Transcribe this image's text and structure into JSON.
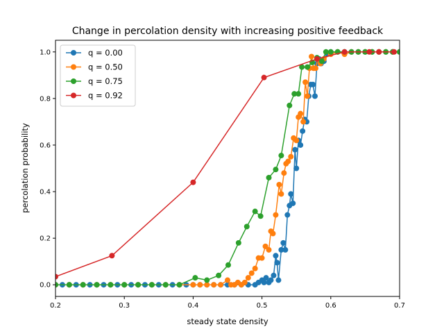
{
  "chart_data": {
    "type": "line",
    "title": "Change in percolation density with increasing positive feedback",
    "xlabel": "steady state density",
    "ylabel": "percolation probability",
    "xlim": [
      0.2,
      0.7
    ],
    "ylim": [
      -0.05,
      1.05
    ],
    "xticks": [
      0.2,
      0.3,
      0.4,
      0.5,
      0.6,
      0.7
    ],
    "yticks": [
      0.0,
      0.2,
      0.4,
      0.6,
      0.8,
      1.0
    ],
    "xtick_labels": [
      "0.2",
      "0.3",
      "0.4",
      "0.5",
      "0.6",
      "0.7"
    ],
    "ytick_labels": [
      "0.0",
      "0.2",
      "0.4",
      "0.6",
      "0.8",
      "1.0"
    ],
    "legend_position": "top-left",
    "grid": false,
    "series": [
      {
        "name": "q = 0.00",
        "color": "#1f77b4",
        "points": [
          [
            0.2,
            0.0
          ],
          [
            0.21,
            0.0
          ],
          [
            0.22,
            0.0
          ],
          [
            0.23,
            0.0
          ],
          [
            0.24,
            0.0
          ],
          [
            0.25,
            0.0
          ],
          [
            0.26,
            0.0
          ],
          [
            0.27,
            0.0
          ],
          [
            0.28,
            0.0
          ],
          [
            0.29,
            0.0
          ],
          [
            0.3,
            0.0
          ],
          [
            0.31,
            0.0
          ],
          [
            0.32,
            0.0
          ],
          [
            0.33,
            0.0
          ],
          [
            0.34,
            0.0
          ],
          [
            0.35,
            0.0
          ],
          [
            0.36,
            0.0
          ],
          [
            0.37,
            0.0
          ],
          [
            0.38,
            0.0
          ],
          [
            0.39,
            0.0
          ],
          [
            0.4,
            0.0
          ],
          [
            0.41,
            0.0
          ],
          [
            0.42,
            0.0
          ],
          [
            0.43,
            0.0
          ],
          [
            0.44,
            0.0
          ],
          [
            0.45,
            0.0
          ],
          [
            0.46,
            0.0
          ],
          [
            0.47,
            0.0
          ],
          [
            0.48,
            0.0
          ],
          [
            0.49,
            0.0
          ],
          [
            0.495,
            0.01
          ],
          [
            0.5,
            0.02
          ],
          [
            0.503,
            0.01
          ],
          [
            0.506,
            0.03
          ],
          [
            0.51,
            0.01
          ],
          [
            0.513,
            0.02
          ],
          [
            0.517,
            0.04
          ],
          [
            0.52,
            0.125
          ],
          [
            0.522,
            0.095
          ],
          [
            0.524,
            0.02
          ],
          [
            0.528,
            0.15
          ],
          [
            0.531,
            0.18
          ],
          [
            0.534,
            0.15
          ],
          [
            0.537,
            0.3
          ],
          [
            0.54,
            0.34
          ],
          [
            0.542,
            0.39
          ],
          [
            0.545,
            0.35
          ],
          [
            0.548,
            0.58
          ],
          [
            0.55,
            0.5
          ],
          [
            0.553,
            0.62
          ],
          [
            0.556,
            0.6
          ],
          [
            0.559,
            0.66
          ],
          [
            0.562,
            0.71
          ],
          [
            0.565,
            0.7
          ],
          [
            0.568,
            0.81
          ],
          [
            0.571,
            0.86
          ],
          [
            0.574,
            0.86
          ],
          [
            0.577,
            0.81
          ],
          [
            0.58,
            0.95
          ],
          [
            0.583,
            0.97
          ],
          [
            0.586,
            0.95
          ],
          [
            0.59,
            0.96
          ],
          [
            0.595,
            0.99
          ],
          [
            0.6,
            1.0
          ],
          [
            0.61,
            1.0
          ],
          [
            0.62,
            1.0
          ],
          [
            0.63,
            1.0
          ],
          [
            0.64,
            1.0
          ],
          [
            0.65,
            1.0
          ],
          [
            0.66,
            1.0
          ],
          [
            0.67,
            1.0
          ],
          [
            0.68,
            1.0
          ],
          [
            0.69,
            1.0
          ],
          [
            0.7,
            1.0
          ]
        ]
      },
      {
        "name": "q = 0.50",
        "color": "#ff7f0e",
        "points": [
          [
            0.2,
            0.0
          ],
          [
            0.22,
            0.0
          ],
          [
            0.24,
            0.0
          ],
          [
            0.26,
            0.0
          ],
          [
            0.28,
            0.0
          ],
          [
            0.3,
            0.0
          ],
          [
            0.32,
            0.0
          ],
          [
            0.34,
            0.0
          ],
          [
            0.36,
            0.0
          ],
          [
            0.38,
            0.0
          ],
          [
            0.4,
            0.0
          ],
          [
            0.41,
            0.0
          ],
          [
            0.42,
            0.0
          ],
          [
            0.43,
            0.0
          ],
          [
            0.44,
            0.0
          ],
          [
            0.45,
            0.02
          ],
          [
            0.455,
            0.0
          ],
          [
            0.46,
            0.0
          ],
          [
            0.465,
            0.01
          ],
          [
            0.47,
            0.0
          ],
          [
            0.475,
            0.01
          ],
          [
            0.48,
            0.03
          ],
          [
            0.485,
            0.05
          ],
          [
            0.49,
            0.07
          ],
          [
            0.495,
            0.115
          ],
          [
            0.5,
            0.115
          ],
          [
            0.505,
            0.165
          ],
          [
            0.51,
            0.15
          ],
          [
            0.513,
            0.23
          ],
          [
            0.516,
            0.22
          ],
          [
            0.52,
            0.3
          ],
          [
            0.525,
            0.43
          ],
          [
            0.528,
            0.39
          ],
          [
            0.532,
            0.48
          ],
          [
            0.535,
            0.52
          ],
          [
            0.538,
            0.53
          ],
          [
            0.542,
            0.55
          ],
          [
            0.546,
            0.63
          ],
          [
            0.55,
            0.62
          ],
          [
            0.553,
            0.72
          ],
          [
            0.556,
            0.735
          ],
          [
            0.56,
            0.7
          ],
          [
            0.563,
            0.87
          ],
          [
            0.566,
            0.81
          ],
          [
            0.569,
            0.93
          ],
          [
            0.572,
            0.98
          ],
          [
            0.575,
            0.93
          ],
          [
            0.578,
            0.93
          ],
          [
            0.581,
            0.97
          ],
          [
            0.585,
            0.95
          ],
          [
            0.59,
            0.97
          ],
          [
            0.6,
            0.99
          ],
          [
            0.61,
            1.0
          ],
          [
            0.62,
            0.99
          ],
          [
            0.63,
            1.0
          ],
          [
            0.64,
            1.0
          ],
          [
            0.65,
            1.0
          ],
          [
            0.66,
            1.0
          ],
          [
            0.67,
            1.0
          ],
          [
            0.68,
            1.0
          ],
          [
            0.69,
            1.0
          ],
          [
            0.7,
            1.0
          ]
        ]
      },
      {
        "name": "q = 0.75",
        "color": "#2ca02c",
        "points": [
          [
            0.2,
            0.0
          ],
          [
            0.22,
            0.0
          ],
          [
            0.24,
            0.0
          ],
          [
            0.26,
            0.0
          ],
          [
            0.28,
            0.0
          ],
          [
            0.3,
            0.0
          ],
          [
            0.32,
            0.0
          ],
          [
            0.34,
            0.0
          ],
          [
            0.36,
            0.0
          ],
          [
            0.38,
            0.0
          ],
          [
            0.403,
            0.03
          ],
          [
            0.42,
            0.02
          ],
          [
            0.437,
            0.04
          ],
          [
            0.451,
            0.085
          ],
          [
            0.466,
            0.18
          ],
          [
            0.478,
            0.25
          ],
          [
            0.49,
            0.315
          ],
          [
            0.498,
            0.295
          ],
          [
            0.51,
            0.46
          ],
          [
            0.52,
            0.495
          ],
          [
            0.528,
            0.555
          ],
          [
            0.54,
            0.77
          ],
          [
            0.547,
            0.82
          ],
          [
            0.553,
            0.82
          ],
          [
            0.558,
            0.935
          ],
          [
            0.566,
            0.935
          ],
          [
            0.573,
            0.955
          ],
          [
            0.58,
            0.975
          ],
          [
            0.587,
            0.96
          ],
          [
            0.593,
            1.0
          ],
          [
            0.6,
            1.0
          ],
          [
            0.61,
            1.0
          ],
          [
            0.62,
            1.0
          ],
          [
            0.63,
            1.0
          ],
          [
            0.64,
            1.0
          ],
          [
            0.65,
            1.0
          ],
          [
            0.66,
            1.0
          ],
          [
            0.67,
            1.0
          ],
          [
            0.68,
            1.0
          ],
          [
            0.69,
            1.0
          ],
          [
            0.7,
            1.0
          ]
        ]
      },
      {
        "name": "q = 0.92",
        "color": "#d62728",
        "points": [
          [
            0.2,
            0.035
          ],
          [
            0.282,
            0.125
          ],
          [
            0.4,
            0.44
          ],
          [
            0.503,
            0.89
          ],
          [
            0.58,
            0.97
          ],
          [
            0.62,
            1.0
          ],
          [
            0.656,
            1.0
          ],
          [
            0.67,
            1.0
          ],
          [
            0.692,
            1.0
          ]
        ]
      }
    ]
  }
}
